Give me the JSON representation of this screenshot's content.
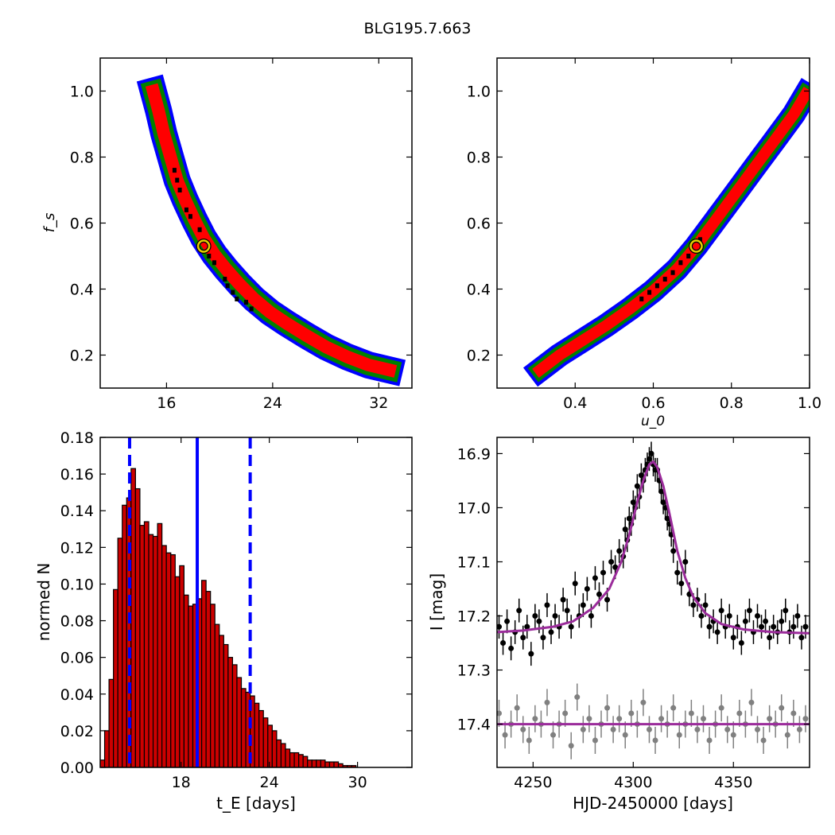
{
  "figure": {
    "title": "BLG195.7.663"
  },
  "chart_data": [
    {
      "type": "heatmap",
      "panel": "tE-fs",
      "xlabel": "",
      "ylabel": "f_s",
      "xlim": [
        11,
        34.5
      ],
      "ylim": [
        0.1,
        1.1
      ],
      "xticks": [
        16,
        24,
        32
      ],
      "yticks": [
        0.2,
        0.4,
        0.6,
        0.8,
        1.0
      ],
      "levels": [
        {
          "color": "#0000ff"
        },
        {
          "color": "#008000"
        },
        {
          "color": "#ff0000"
        },
        {
          "color": "#000000"
        }
      ],
      "best_fit": {
        "x": 18.8,
        "y": 0.53,
        "marker_color": "#e8d000"
      },
      "curve": [
        [
          15.0,
          1.0
        ],
        [
          15.4,
          0.94
        ],
        [
          15.8,
          0.87
        ],
        [
          16.3,
          0.8
        ],
        [
          16.8,
          0.73
        ],
        [
          17.4,
          0.67
        ],
        [
          18.1,
          0.61
        ],
        [
          18.8,
          0.555
        ],
        [
          19.6,
          0.505
        ],
        [
          20.5,
          0.46
        ],
        [
          21.5,
          0.415
        ],
        [
          22.6,
          0.37
        ],
        [
          23.8,
          0.33
        ],
        [
          25.1,
          0.295
        ],
        [
          26.5,
          0.26
        ],
        [
          28.0,
          0.225
        ],
        [
          29.6,
          0.195
        ],
        [
          31.2,
          0.17
        ],
        [
          32.8,
          0.155
        ]
      ],
      "best_points": [
        [
          16.6,
          0.76
        ],
        [
          16.8,
          0.73
        ],
        [
          17.0,
          0.7
        ],
        [
          17.5,
          0.64
        ],
        [
          17.8,
          0.62
        ],
        [
          18.5,
          0.58
        ],
        [
          19.2,
          0.5
        ],
        [
          19.6,
          0.48
        ],
        [
          20.4,
          0.43
        ],
        [
          20.6,
          0.41
        ],
        [
          21.0,
          0.39
        ],
        [
          21.3,
          0.37
        ],
        [
          22.0,
          0.36
        ],
        [
          22.4,
          0.34
        ]
      ]
    },
    {
      "type": "heatmap",
      "panel": "u0-fs",
      "xlabel": "u_0",
      "ylabel": "",
      "xlim": [
        0.2,
        1.0
      ],
      "ylim": [
        0.1,
        1.1
      ],
      "xticks": [
        0.4,
        0.6,
        0.8,
        1.0
      ],
      "yticks": [
        0.2,
        0.4,
        0.6,
        0.8,
        1.0
      ],
      "best_fit": {
        "x": 0.71,
        "y": 0.53
      },
      "curve": [
        [
          0.31,
          0.155
        ],
        [
          0.36,
          0.2
        ],
        [
          0.42,
          0.245
        ],
        [
          0.48,
          0.29
        ],
        [
          0.54,
          0.34
        ],
        [
          0.6,
          0.395
        ],
        [
          0.66,
          0.46
        ],
        [
          0.71,
          0.53
        ],
        [
          0.76,
          0.61
        ],
        [
          0.81,
          0.69
        ],
        [
          0.86,
          0.77
        ],
        [
          0.91,
          0.85
        ],
        [
          0.96,
          0.93
        ],
        [
          0.99,
          0.99
        ]
      ],
      "best_points": [
        [
          0.57,
          0.37
        ],
        [
          0.59,
          0.39
        ],
        [
          0.61,
          0.41
        ],
        [
          0.63,
          0.43
        ],
        [
          0.65,
          0.45
        ],
        [
          0.67,
          0.48
        ],
        [
          0.69,
          0.5
        ],
        [
          0.72,
          0.55
        ]
      ]
    },
    {
      "type": "bar",
      "panel": "tE-histogram",
      "xlabel": "t_E [days]",
      "ylabel": "normed N",
      "xlim": [
        12.5,
        33.7
      ],
      "ylim": [
        0.0,
        0.18
      ],
      "xticks": [
        18,
        24,
        30
      ],
      "yticks": [
        0.0,
        0.02,
        0.04,
        0.06,
        0.08,
        0.1,
        0.12,
        0.14,
        0.16,
        0.18
      ],
      "bin_start": 12.5,
      "bin_width": 0.3,
      "bar_color": "#cc0000",
      "values": [
        0.004,
        0.02,
        0.048,
        0.097,
        0.125,
        0.143,
        0.147,
        0.163,
        0.152,
        0.132,
        0.134,
        0.127,
        0.126,
        0.133,
        0.121,
        0.117,
        0.116,
        0.104,
        0.11,
        0.094,
        0.088,
        0.089,
        0.092,
        0.102,
        0.096,
        0.089,
        0.078,
        0.072,
        0.067,
        0.06,
        0.056,
        0.049,
        0.043,
        0.041,
        0.039,
        0.035,
        0.031,
        0.027,
        0.023,
        0.02,
        0.015,
        0.013,
        0.01,
        0.008,
        0.008,
        0.007,
        0.006,
        0.004,
        0.004,
        0.004,
        0.004,
        0.003,
        0.003,
        0.003,
        0.002,
        0.001,
        0.001,
        0.001
      ],
      "vlines": [
        {
          "x": 14.5,
          "style": "dashed"
        },
        {
          "x": 19.1,
          "style": "solid"
        },
        {
          "x": 22.7,
          "style": "dashed"
        }
      ],
      "vline_color": "#0000ff"
    },
    {
      "type": "scatter",
      "panel": "lightcurve",
      "xlabel": "HJD-2450000 [days]",
      "ylabel": "I [mag]",
      "xlim": [
        4232,
        4388
      ],
      "ylim": [
        17.48,
        16.87
      ],
      "xticks": [
        4250,
        4300,
        4350
      ],
      "yticks": [
        16.9,
        17.0,
        17.1,
        17.2,
        17.3,
        17.4
      ],
      "series": [
        {
          "role": "data",
          "color": "#000000",
          "errbar": 0.022,
          "x": [
            4233,
            4235,
            4237,
            4239,
            4241,
            4243,
            4245,
            4247,
            4249,
            4251,
            4253,
            4255,
            4257,
            4259,
            4261,
            4263,
            4265,
            4267,
            4269,
            4271,
            4273,
            4275,
            4277,
            4279,
            4281,
            4283,
            4285,
            4287,
            4289,
            4291,
            4293,
            4295,
            4296,
            4297,
            4298,
            4299,
            4300,
            4301,
            4302,
            4303,
            4304,
            4305,
            4306,
            4307,
            4308,
            4309,
            4310,
            4311,
            4312,
            4313,
            4314,
            4315,
            4316,
            4317,
            4318,
            4319,
            4320,
            4322,
            4324,
            4326,
            4328,
            4330,
            4332,
            4334,
            4336,
            4338,
            4340,
            4342,
            4344,
            4346,
            4348,
            4350,
            4352,
            4354,
            4356,
            4358,
            4360,
            4362,
            4364,
            4366,
            4368,
            4370,
            4372,
            4374,
            4376,
            4378,
            4380,
            4382,
            4384,
            4386
          ],
          "y": [
            17.22,
            17.25,
            17.21,
            17.26,
            17.23,
            17.19,
            17.24,
            17.22,
            17.27,
            17.2,
            17.21,
            17.24,
            17.18,
            17.23,
            17.2,
            17.22,
            17.17,
            17.19,
            17.22,
            17.14,
            17.2,
            17.18,
            17.15,
            17.2,
            17.13,
            17.16,
            17.12,
            17.17,
            17.1,
            17.11,
            17.08,
            17.09,
            17.04,
            17.06,
            17.02,
            17.03,
            16.99,
            17.0,
            16.96,
            16.98,
            16.94,
            16.95,
            16.93,
            16.92,
            16.91,
            16.9,
            16.92,
            16.93,
            16.93,
            16.95,
            16.97,
            16.99,
            17.0,
            17.02,
            17.03,
            17.05,
            17.08,
            17.12,
            17.14,
            17.1,
            17.16,
            17.18,
            17.17,
            17.2,
            17.18,
            17.22,
            17.21,
            17.23,
            17.19,
            17.22,
            17.2,
            17.24,
            17.22,
            17.25,
            17.21,
            17.19,
            17.23,
            17.2,
            17.22,
            17.21,
            17.24,
            17.22,
            17.23,
            17.21,
            17.19,
            17.23,
            17.22,
            17.2,
            17.24,
            17.22
          ]
        },
        {
          "role": "model",
          "color": "#9b2c9b",
          "x": [
            4232,
            4245,
            4260,
            4270,
            4280,
            4288,
            4294,
            4298,
            4302,
            4305,
            4308,
            4310,
            4312,
            4315,
            4318,
            4322,
            4326,
            4330,
            4336,
            4344,
            4355,
            4370,
            4388
          ],
          "y": [
            17.23,
            17.227,
            17.22,
            17.21,
            17.185,
            17.15,
            17.1,
            17.05,
            16.99,
            16.95,
            16.92,
            16.915,
            16.925,
            16.96,
            17.01,
            17.08,
            17.13,
            17.165,
            17.195,
            17.215,
            17.225,
            17.23,
            17.232
          ]
        },
        {
          "role": "residuals",
          "color": "#808080",
          "errbar": 0.025,
          "x": [
            4233,
            4236,
            4239,
            4242,
            4245,
            4248,
            4251,
            4254,
            4257,
            4260,
            4263,
            4266,
            4269,
            4272,
            4275,
            4278,
            4281,
            4284,
            4287,
            4290,
            4293,
            4296,
            4299,
            4302,
            4305,
            4308,
            4311,
            4314,
            4317,
            4320,
            4323,
            4326,
            4329,
            4332,
            4335,
            4338,
            4341,
            4344,
            4347,
            4350,
            4353,
            4356,
            4359,
            4362,
            4365,
            4368,
            4371,
            4374,
            4377,
            4380,
            4383,
            4386
          ],
          "y": [
            17.38,
            17.42,
            17.4,
            17.37,
            17.41,
            17.43,
            17.39,
            17.4,
            17.36,
            17.42,
            17.4,
            17.38,
            17.44,
            17.35,
            17.41,
            17.39,
            17.43,
            17.4,
            17.37,
            17.41,
            17.39,
            17.42,
            17.38,
            17.4,
            17.36,
            17.41,
            17.43,
            17.39,
            17.4,
            17.37,
            17.42,
            17.4,
            17.38,
            17.41,
            17.39,
            17.43,
            17.4,
            17.37,
            17.41,
            17.42,
            17.38,
            17.4,
            17.36,
            17.41,
            17.43,
            17.39,
            17.4,
            17.37,
            17.42,
            17.38,
            17.41,
            17.39
          ]
        },
        {
          "role": "residual-model",
          "color": "#9b2c9b",
          "x": [
            4232,
            4388
          ],
          "y": [
            17.4,
            17.4
          ]
        }
      ]
    }
  ]
}
